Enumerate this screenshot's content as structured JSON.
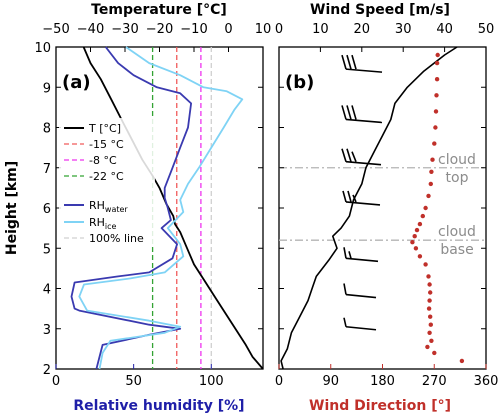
{
  "chart_data": [
    {
      "type": "line",
      "panel_label": "(a)",
      "top_axis": {
        "label": "Temperature [°C]",
        "range": [
          -50,
          10
        ],
        "ticks": [
          -50,
          -40,
          -30,
          -20,
          -10,
          0,
          10
        ],
        "tick_labels": [
          "−50",
          "−40",
          "−30",
          "−20",
          "−10",
          "0",
          "10"
        ]
      },
      "bottom_axis": {
        "label": "Relative humidity [%]",
        "range": [
          0,
          133.3
        ],
        "ticks": [
          0,
          50,
          100
        ],
        "tick_labels": [
          "0",
          "50",
          "100"
        ],
        "color": "#1f1fa8"
      },
      "y_axis": {
        "label": "Height [km]",
        "range": [
          2,
          10
        ],
        "ticks": [
          2,
          3,
          4,
          5,
          6,
          7,
          8,
          9,
          10
        ],
        "tick_labels": [
          "2",
          "3",
          "4",
          "5",
          "6",
          "7",
          "8",
          "9",
          "10"
        ]
      },
      "legend_position": "center-left",
      "reference_lines": [
        {
          "name": "-15 °C",
          "axis": "temperature",
          "value": -15,
          "color": "#f05a5a",
          "dash": "dashed"
        },
        {
          "name": "-8 °C",
          "axis": "temperature",
          "value": -8,
          "color": "#ee33ee",
          "dash": "dashed"
        },
        {
          "name": "-22 °C",
          "axis": "temperature",
          "value": -22,
          "color": "#33a333",
          "dash": "dashed"
        },
        {
          "name": "100% line",
          "axis": "rh",
          "value": 100,
          "color": "#d0d0d0",
          "dash": "dashed"
        }
      ],
      "series": [
        {
          "name": "T [°C]",
          "axis": "temperature",
          "color": "#000000",
          "points": [
            [
              10,
              2.0
            ],
            [
              7,
              2.3
            ],
            [
              5,
              2.6
            ],
            [
              2,
              3.0
            ],
            [
              -1,
              3.4
            ],
            [
              -4,
              3.8
            ],
            [
              -7,
              4.2
            ],
            [
              -10,
              4.6
            ],
            [
              -12,
              5.0
            ],
            [
              -14,
              5.4
            ],
            [
              -15.5,
              5.6
            ],
            [
              -16,
              5.8
            ],
            [
              -18,
              6.1
            ],
            [
              -20,
              6.5
            ],
            [
              -22,
              6.8
            ],
            [
              -25,
              7.2
            ],
            [
              -28,
              7.7
            ],
            [
              -31,
              8.2
            ],
            [
              -34,
              8.7
            ],
            [
              -37,
              9.2
            ],
            [
              -40,
              9.6
            ],
            [
              -42,
              10.0
            ]
          ]
        },
        {
          "name": "RH_water",
          "legend_label": "RH",
          "legend_subscript": "water",
          "axis": "rh",
          "color": "#3a3ab0",
          "points": [
            [
              26,
              2.0
            ],
            [
              28,
              2.3
            ],
            [
              30,
              2.6
            ],
            [
              60,
              2.85
            ],
            [
              80,
              3.0
            ],
            [
              60,
              3.1
            ],
            [
              15,
              3.45
            ],
            [
              12,
              3.5
            ],
            [
              10,
              3.8
            ],
            [
              12,
              4.15
            ],
            [
              40,
              4.3
            ],
            [
              60,
              4.4
            ],
            [
              75,
              4.75
            ],
            [
              78,
              5.1
            ],
            [
              68,
              5.5
            ],
            [
              74,
              5.7
            ],
            [
              72,
              6.0
            ],
            [
              70,
              6.25
            ],
            [
              70,
              6.5
            ],
            [
              75,
              7.0
            ],
            [
              80,
              7.5
            ],
            [
              85,
              8.0
            ],
            [
              87,
              8.6
            ],
            [
              80,
              8.85
            ],
            [
              65,
              9.0
            ],
            [
              50,
              9.3
            ],
            [
              40,
              9.6
            ],
            [
              32,
              10.0
            ]
          ]
        },
        {
          "name": "RH_ice",
          "legend_label": "RH",
          "legend_subscript": "ice",
          "axis": "rh",
          "color": "#7fd3f5",
          "points": [
            [
              28,
              2.0
            ],
            [
              30,
              2.4
            ],
            [
              35,
              2.7
            ],
            [
              70,
              2.9
            ],
            [
              80,
              3.05
            ],
            [
              60,
              3.2
            ],
            [
              20,
              3.45
            ],
            [
              15,
              3.8
            ],
            [
              18,
              4.1
            ],
            [
              48,
              4.25
            ],
            [
              70,
              4.4
            ],
            [
              82,
              4.8
            ],
            [
              80,
              5.1
            ],
            [
              72,
              5.5
            ],
            [
              82,
              5.9
            ],
            [
              80,
              6.2
            ],
            [
              85,
              6.6
            ],
            [
              92,
              7.0
            ],
            [
              100,
              7.5
            ],
            [
              108,
              8.0
            ],
            [
              115,
              8.45
            ],
            [
              120,
              8.7
            ],
            [
              110,
              8.9
            ],
            [
              95,
              9.0
            ],
            [
              80,
              9.3
            ],
            [
              60,
              9.6
            ],
            [
              45,
              10.0
            ]
          ]
        }
      ]
    },
    {
      "type": "line",
      "panel_label": "(b)",
      "top_axis": {
        "label": "Wind Speed [m/s]",
        "range": [
          0,
          50
        ],
        "ticks": [
          0,
          10,
          20,
          30,
          40,
          50
        ],
        "tick_labels": [
          "0",
          "10",
          "20",
          "30",
          "40",
          "50"
        ]
      },
      "bottom_axis": {
        "label": "Wind Direction [°]",
        "range": [
          0,
          360
        ],
        "ticks": [
          0,
          90,
          180,
          270,
          360
        ],
        "tick_labels": [
          "0",
          "90",
          "180",
          "270",
          "360"
        ],
        "color": "#c0302a"
      },
      "y_axis": {
        "range": [
          2,
          10
        ],
        "ticks": [
          2,
          3,
          4,
          5,
          6,
          7,
          8,
          9,
          10
        ]
      },
      "annotations": [
        {
          "text": [
            "cloud",
            "top"
          ],
          "height_km": 7.0
        },
        {
          "text": [
            "cloud",
            "base"
          ],
          "height_km": 5.2
        }
      ],
      "series": [
        {
          "name": "Wind speed",
          "axis": "speed",
          "color": "#000000",
          "points": [
            [
              1,
              2.0
            ],
            [
              0.5,
              2.2
            ],
            [
              2,
              2.5
            ],
            [
              3,
              2.9
            ],
            [
              5,
              3.3
            ],
            [
              7,
              3.7
            ],
            [
              8,
              4.0
            ],
            [
              9,
              4.3
            ],
            [
              12,
              4.7
            ],
            [
              14,
              5.0
            ],
            [
              13,
              5.3
            ],
            [
              15,
              5.5
            ],
            [
              17,
              5.8
            ],
            [
              18,
              6.2
            ],
            [
              20,
              6.6
            ],
            [
              21,
              7.0
            ],
            [
              23,
              7.4
            ],
            [
              25,
              7.8
            ],
            [
              27,
              8.2
            ],
            [
              28,
              8.6
            ],
            [
              31,
              9.0
            ],
            [
              35,
              9.4
            ],
            [
              40,
              9.8
            ],
            [
              43,
              10.0
            ]
          ]
        },
        {
          "name": "Wind direction",
          "axis": "direction",
          "color": "#c0302a",
          "marker": "dot",
          "points": [
            [
              318,
              2.2
            ],
            [
              270,
              2.4
            ],
            [
              258,
              2.55
            ],
            [
              265,
              2.7
            ],
            [
              262,
              2.9
            ],
            [
              264,
              3.1
            ],
            [
              263,
              3.3
            ],
            [
              261,
              3.5
            ],
            [
              262,
              3.7
            ],
            [
              263,
              3.9
            ],
            [
              262,
              4.1
            ],
            [
              260,
              4.3
            ],
            [
              255,
              4.6
            ],
            [
              245,
              4.8
            ],
            [
              238,
              5.0
            ],
            [
              232,
              5.15
            ],
            [
              236,
              5.3
            ],
            [
              240,
              5.45
            ],
            [
              245,
              5.6
            ],
            [
              250,
              5.8
            ],
            [
              255,
              6.0
            ],
            [
              260,
              6.3
            ],
            [
              264,
              6.6
            ],
            [
              265,
              6.9
            ],
            [
              267,
              7.2
            ],
            [
              270,
              7.6
            ],
            [
              272,
              8.0
            ],
            [
              273,
              8.4
            ],
            [
              274,
              8.8
            ],
            [
              275,
              9.2
            ],
            [
              275,
              9.6
            ],
            [
              276,
              9.8
            ]
          ]
        }
      ],
      "wind_barbs": [
        {
          "height_km": 3.05
        },
        {
          "height_km": 3.85
        },
        {
          "height_km": 4.75
        },
        {
          "height_km": 6.15
        },
        {
          "height_km": 7.15
        },
        {
          "height_km": 8.2
        },
        {
          "height_km": 9.45
        }
      ]
    }
  ]
}
